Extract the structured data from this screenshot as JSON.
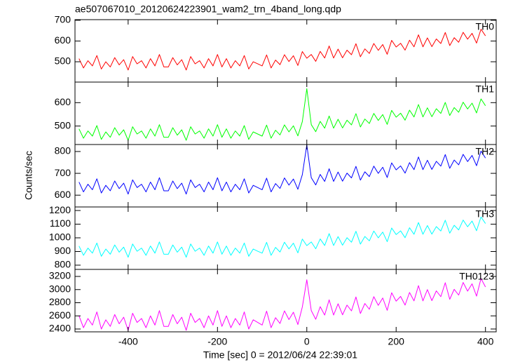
{
  "chart_data": {
    "type": "line",
    "title": "ae507067010_20120624223901_wam2_trn_4band_long.qdp",
    "xlabel": "Time [sec] 0 = 2012/06/24 22:39:01",
    "ylabel": "Counts/sec",
    "xlim": [
      -519,
      424
    ],
    "xticks": [
      -400,
      -200,
      0,
      200,
      400
    ],
    "x": [
      -510,
      -500,
      -490,
      -480,
      -470,
      -460,
      -450,
      -440,
      -430,
      -420,
      -410,
      -400,
      -390,
      -380,
      -370,
      -360,
      -350,
      -340,
      -330,
      -320,
      -310,
      -300,
      -290,
      -280,
      -270,
      -260,
      -250,
      -240,
      -230,
      -220,
      -210,
      -200,
      -190,
      -180,
      -170,
      -160,
      -150,
      -140,
      -130,
      -120,
      -110,
      -100,
      -90,
      -80,
      -70,
      -60,
      -50,
      -40,
      -30,
      -20,
      -10,
      0,
      10,
      20,
      30,
      40,
      50,
      60,
      70,
      80,
      90,
      100,
      110,
      120,
      130,
      140,
      150,
      160,
      170,
      180,
      190,
      200,
      210,
      220,
      230,
      240,
      250,
      260,
      270,
      280,
      290,
      300,
      310,
      320,
      330,
      340,
      350,
      360,
      370,
      380,
      390,
      400
    ],
    "series": [
      {
        "name": "TH0",
        "color": "#ff0000",
        "ylim": [
          402,
          703
        ],
        "yticks": [
          500,
          600,
          700
        ],
        "values": [
          515,
          470,
          505,
          480,
          530,
          465,
          500,
          475,
          520,
          485,
          510,
          460,
          525,
          490,
          505,
          470,
          515,
          480,
          535,
          475,
          475,
          520,
          485,
          510,
          460,
          525,
          490,
          505,
          470,
          515,
          480,
          535,
          475,
          515,
          470,
          505,
          480,
          530,
          465,
          500,
          490,
          480,
          533,
          470,
          508,
          486,
          534,
          501,
          529,
          482,
          549,
          517,
          535,
          502,
          550,
          518,
          576,
          518,
          561,
          519,
          556,
          534,
          587,
          524,
          562,
          540,
          588,
          555,
          583,
          536,
          603,
          571,
          589,
          556,
          604,
          572,
          630,
          572,
          615,
          573,
          610,
          588,
          641,
          578,
          616,
          594,
          642,
          609,
          637,
          590,
          657,
          625
        ]
      },
      {
        "name": "TH1",
        "color": "#00ff00",
        "ylim": [
          421,
          688
        ],
        "yticks": [
          500,
          600
        ],
        "values": [
          488,
          448,
          479,
          457,
          502,
          443,
          475,
          452,
          493,
          461,
          484,
          439,
          497,
          466,
          479,
          448,
          488,
          457,
          506,
          452,
          452,
          493,
          461,
          484,
          439,
          497,
          466,
          479,
          448,
          488,
          457,
          506,
          452,
          488,
          448,
          479,
          457,
          502,
          443,
          475,
          466,
          457,
          504,
          448,
          482,
          462,
          505,
          475,
          501,
          458,
          519,
          660,
          506,
          476,
          520,
          491,
          543,
          491,
          529,
          492,
          525,
          505,
          553,
          496,
          530,
          511,
          554,
          524,
          549,
          507,
          567,
          538,
          555,
          525,
          568,
          539,
          592,
          539,
          578,
          540,
          574,
          554,
          601,
          545,
          579,
          559,
          602,
          573,
          598,
          556,
          616,
          587
        ]
      },
      {
        "name": "TH2",
        "color": "#0000ff",
        "ylim": [
          546,
          832
        ],
        "yticks": [
          600,
          700,
          800
        ],
        "values": [
          660,
          615,
          650,
          625,
          675,
          610,
          645,
          620,
          665,
          630,
          655,
          605,
          670,
          635,
          650,
          615,
          660,
          625,
          680,
          620,
          620,
          665,
          630,
          655,
          605,
          670,
          635,
          650,
          615,
          660,
          625,
          680,
          620,
          660,
          615,
          650,
          625,
          675,
          610,
          645,
          635,
          625,
          678,
          615,
          653,
          631,
          679,
          646,
          674,
          627,
          694,
          830,
          680,
          647,
          695,
          663,
          721,
          663,
          706,
          664,
          701,
          679,
          732,
          669,
          707,
          685,
          733,
          700,
          728,
          681,
          748,
          716,
          734,
          701,
          749,
          717,
          775,
          717,
          760,
          718,
          755,
          733,
          786,
          723,
          761,
          739,
          787,
          754,
          782,
          735,
          802,
          770
        ]
      },
      {
        "name": "TH3",
        "color": "#00ffff",
        "ylim": [
          769,
          1226
        ],
        "yticks": [
          800,
          900,
          1000,
          1100,
          1200
        ],
        "values": [
          940,
          872,
          925,
          888,
          962,
          865,
          918,
          880,
          948,
          895,
          932,
          858,
          955,
          902,
          925,
          872,
          940,
          888,
          970,
          880,
          880,
          948,
          895,
          932,
          858,
          955,
          902,
          925,
          872,
          940,
          888,
          970,
          880,
          940,
          872,
          925,
          888,
          962,
          865,
          918,
          902,
          888,
          967,
          872,
          930,
          896,
          968,
          919,
          961,
          890,
          991,
          943,
          970,
          920,
          992,
          944,
          1031,
          944,
          1009,
          946,
          1001,
          968,
          1048,
          954,
          1010,
          978,
          1050,
          1000,
          1042,
          972,
          1072,
          1024,
          1051,
          1001,
          1074,
          1026,
          1112,
          1026,
          1090,
          1027,
          1082,
          1050,
          1129,
          1034,
          1092,
          1058,
          1130,
          1081,
          1123,
          1052,
          1153,
          1105
        ]
      },
      {
        "name": "TH0123",
        "color": "#ff00ff",
        "ylim": [
          2357,
          3307
        ],
        "yticks": [
          2400,
          2600,
          2800,
          3000,
          3200
        ],
        "values": [
          2600,
          2420,
          2560,
          2460,
          2660,
          2400,
          2540,
          2440,
          2620,
          2480,
          2580,
          2380,
          2640,
          2500,
          2560,
          2420,
          2600,
          2460,
          2680,
          2440,
          2440,
          2620,
          2480,
          2580,
          2380,
          2640,
          2500,
          2560,
          2420,
          2600,
          2460,
          2680,
          2440,
          2600,
          2420,
          2560,
          2460,
          2660,
          2400,
          2540,
          2500,
          2460,
          2672,
          2420,
          2572,
          2484,
          2676,
          2544,
          2656,
          2468,
          2736,
          3150,
          2680,
          2548,
          2740,
          2612,
          2844,
          2612,
          2784,
          2616,
          2764,
          2676,
          2888,
          2636,
          2788,
          2700,
          2892,
          2760,
          2872,
          2684,
          2952,
          2824,
          2896,
          2764,
          2956,
          2828,
          3060,
          2828,
          3000,
          2832,
          2980,
          2892,
          3104,
          2852,
          3004,
          2916,
          3108,
          2976,
          3088,
          2900,
          3168,
          3040
        ]
      }
    ]
  }
}
